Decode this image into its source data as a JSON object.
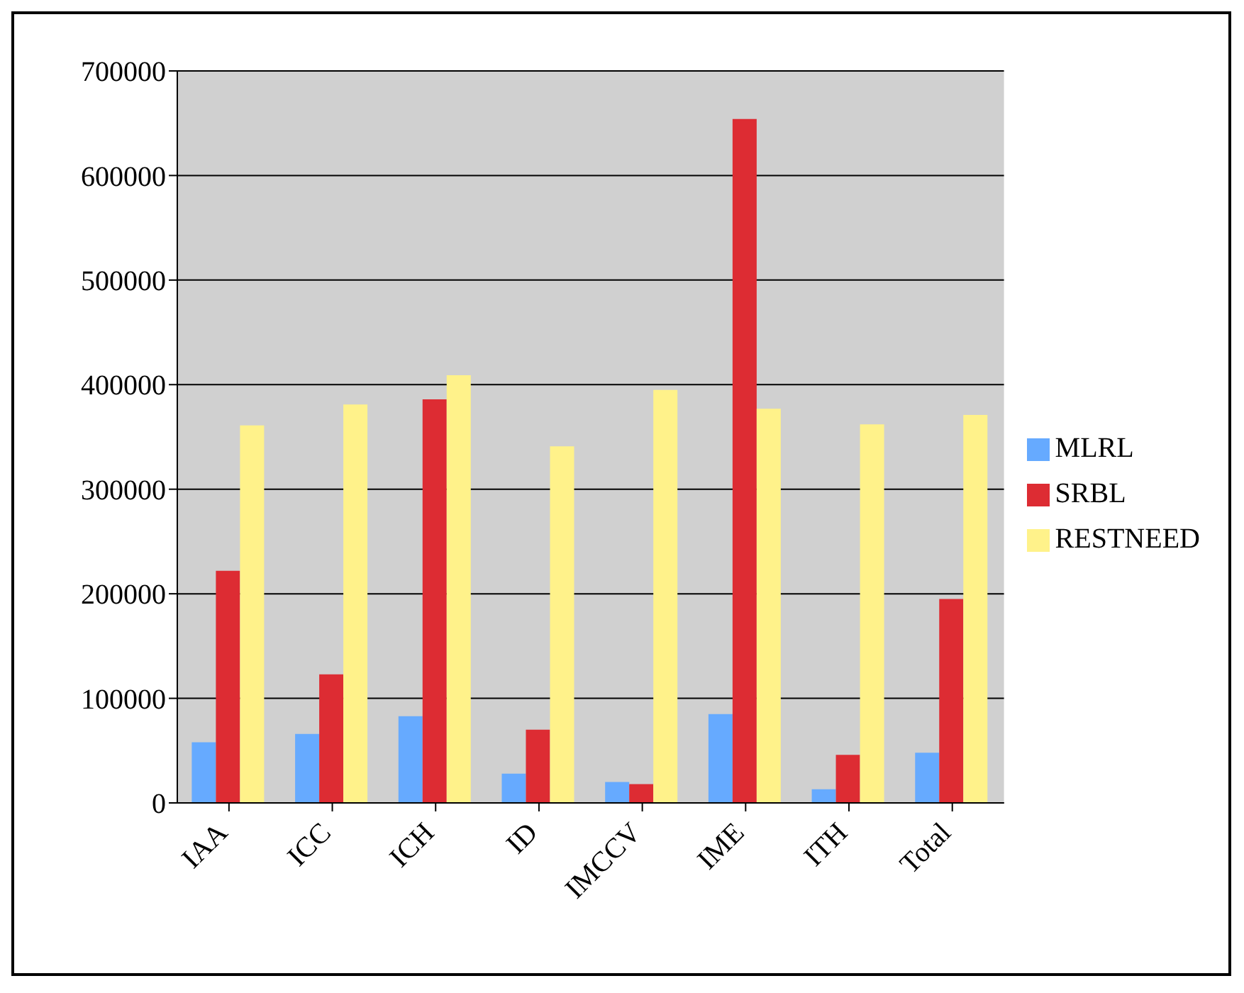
{
  "chart_data": {
    "type": "bar",
    "categories": [
      "IAA",
      "ICC",
      "ICH",
      "ID",
      "IMCCV",
      "IME",
      "ITH",
      "Total"
    ],
    "series": [
      {
        "name": "MLRL",
        "color": "#66aaff",
        "values": [
          58000,
          66000,
          83000,
          28000,
          20000,
          85000,
          13000,
          48000
        ]
      },
      {
        "name": "SRBL",
        "color": "#dd2c33",
        "values": [
          222000,
          123000,
          386000,
          70000,
          18000,
          654000,
          46000,
          195000
        ]
      },
      {
        "name": "RESTNEED",
        "color": "#fff28a",
        "values": [
          361000,
          381000,
          409000,
          341000,
          395000,
          377000,
          362000,
          371000
        ]
      }
    ],
    "ylim": [
      0,
      700000
    ],
    "yticks": [
      0,
      100000,
      200000,
      300000,
      400000,
      500000,
      600000,
      700000
    ],
    "grid": "y",
    "legend": "right"
  }
}
